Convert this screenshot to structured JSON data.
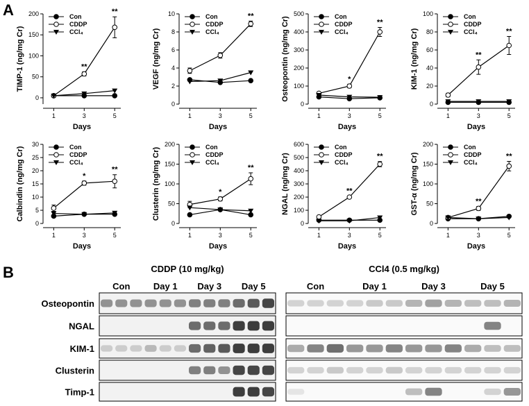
{
  "panels": {
    "a": "A",
    "b": "B"
  },
  "chart_data": [
    {
      "type": "line",
      "ylabel": "TIMP-1 (ng/mg Cr)",
      "xlabel": "Days",
      "x": [
        1,
        3,
        5
      ],
      "xlim": [
        0.3,
        5.4
      ],
      "xticks": [
        1,
        3,
        5
      ],
      "ylim": [
        -15,
        200
      ],
      "yticks": [
        0,
        50,
        100,
        150,
        200
      ],
      "legend": "upper left",
      "series": [
        {
          "name": "Con",
          "color": "#000",
          "marker": "filled-circle",
          "values": [
            5,
            5,
            5
          ]
        },
        {
          "name": "CDDP",
          "color": "#000",
          "marker": "open-circle",
          "values": [
            5,
            57,
            168
          ],
          "errors": [
            3,
            5,
            25
          ],
          "annotations": [
            null,
            "**",
            "**"
          ]
        },
        {
          "name": "CCl₄",
          "color": "#000",
          "marker": "filled-triangle",
          "values": [
            5,
            10,
            17
          ]
        }
      ]
    },
    {
      "type": "line",
      "ylabel": "VEGF (ng/mg Cr)",
      "xlabel": "Days",
      "x": [
        1,
        3,
        5
      ],
      "xlim": [
        0.3,
        5.4
      ],
      "xticks": [
        1,
        3,
        5
      ],
      "ylim": [
        0,
        10
      ],
      "yticks": [
        0,
        2,
        4,
        6,
        8,
        10
      ],
      "legend": "upper left",
      "series": [
        {
          "name": "Con",
          "color": "#000",
          "marker": "filled-circle",
          "values": [
            2.7,
            2.4,
            2.6
          ]
        },
        {
          "name": "CDDP",
          "color": "#000",
          "marker": "open-circle",
          "values": [
            3.7,
            5.4,
            8.9
          ],
          "errors": [
            0.3,
            0.3,
            0.3
          ],
          "annotations": [
            null,
            null,
            "**"
          ]
        },
        {
          "name": "CCl₄",
          "color": "#000",
          "marker": "filled-triangle",
          "values": [
            2.5,
            2.6,
            3.5
          ]
        }
      ]
    },
    {
      "type": "line",
      "ylabel": "Osteopontin (ng/mg Cr)",
      "xlabel": "Days",
      "x": [
        1,
        3,
        5
      ],
      "xlim": [
        0.3,
        5.4
      ],
      "xticks": [
        1,
        3,
        5
      ],
      "ylim": [
        0,
        500
      ],
      "yticks": [
        0,
        100,
        200,
        300,
        400,
        500
      ],
      "legend": "upper left",
      "series": [
        {
          "name": "Con",
          "color": "#000",
          "marker": "filled-circle",
          "values": [
            40,
            30,
            35
          ]
        },
        {
          "name": "CDDP",
          "color": "#000",
          "marker": "open-circle",
          "values": [
            60,
            100,
            400
          ],
          "errors": [
            5,
            10,
            25
          ],
          "annotations": [
            null,
            "*",
            "**"
          ]
        },
        {
          "name": "CCl₄",
          "color": "#000",
          "marker": "filled-triangle",
          "values": [
            50,
            40,
            38
          ]
        }
      ]
    },
    {
      "type": "line",
      "ylabel": "KIM-1 (ng/mg Cr)",
      "xlabel": "Days",
      "x": [
        1,
        3,
        5
      ],
      "xlim": [
        0.3,
        5.4
      ],
      "xticks": [
        1,
        3,
        5
      ],
      "ylim": [
        0,
        100
      ],
      "yticks": [
        0,
        20,
        40,
        60,
        80,
        100
      ],
      "legend": "upper left",
      "series": [
        {
          "name": "Con",
          "color": "#000",
          "marker": "filled-circle",
          "values": [
            2,
            2,
            2
          ]
        },
        {
          "name": "CDDP",
          "color": "#000",
          "marker": "open-circle",
          "values": [
            10,
            41,
            65
          ],
          "errors": [
            2,
            8,
            10
          ],
          "annotations": [
            null,
            "**",
            "**"
          ]
        },
        {
          "name": "CCl₄",
          "color": "#000",
          "marker": "filled-triangle",
          "values": [
            3,
            3,
            3
          ]
        }
      ]
    },
    {
      "type": "line",
      "ylabel": "Calbindin (ng/mg Cr)",
      "xlabel": "Days",
      "x": [
        1,
        3,
        5
      ],
      "xlim": [
        0.3,
        5.4
      ],
      "xticks": [
        1,
        3,
        5
      ],
      "ylim": [
        0,
        30
      ],
      "yticks": [
        0,
        5,
        10,
        15,
        20,
        25,
        30
      ],
      "legend": "upper left",
      "series": [
        {
          "name": "Con",
          "color": "#000",
          "marker": "filled-circle",
          "values": [
            2.8,
            3.5,
            3.5
          ]
        },
        {
          "name": "CDDP",
          "color": "#000",
          "marker": "open-circle",
          "values": [
            5.8,
            15.3,
            16
          ],
          "errors": [
            1.2,
            0.8,
            2.5
          ],
          "annotations": [
            null,
            "*",
            "**"
          ]
        },
        {
          "name": "CCl₄",
          "color": "#000",
          "marker": "filled-triangle",
          "values": [
            3.8,
            3.5,
            4
          ]
        }
      ]
    },
    {
      "type": "line",
      "ylabel": "Clusterin (ng/mg Cr)",
      "xlabel": "Days",
      "x": [
        1,
        3,
        5
      ],
      "xlim": [
        0.3,
        5.4
      ],
      "xticks": [
        1,
        3,
        5
      ],
      "ylim": [
        0,
        200
      ],
      "yticks": [
        0,
        50,
        100,
        150,
        200
      ],
      "legend": "upper left",
      "series": [
        {
          "name": "Con",
          "color": "#000",
          "marker": "filled-circle",
          "values": [
            22,
            35,
            22
          ]
        },
        {
          "name": "CDDP",
          "color": "#000",
          "marker": "open-circle",
          "values": [
            48,
            62,
            113
          ],
          "errors": [
            8,
            5,
            15
          ],
          "annotations": [
            null,
            "*",
            "**"
          ]
        },
        {
          "name": "CCl₄",
          "color": "#000",
          "marker": "filled-triangle",
          "values": [
            40,
            35,
            32
          ]
        }
      ]
    },
    {
      "type": "line",
      "ylabel": "NGAL (ng/mg Cr)",
      "xlabel": "Days",
      "x": [
        1,
        3,
        5
      ],
      "xlim": [
        0.3,
        5.4
      ],
      "xticks": [
        1,
        3,
        5
      ],
      "ylim": [
        0,
        600
      ],
      "yticks": [
        0,
        100,
        200,
        300,
        400,
        500,
        600
      ],
      "legend": "upper left",
      "series": [
        {
          "name": "Con",
          "color": "#000",
          "marker": "filled-circle",
          "values": [
            25,
            25,
            25
          ]
        },
        {
          "name": "CDDP",
          "color": "#000",
          "marker": "open-circle",
          "values": [
            50,
            200,
            450
          ],
          "errors": [
            5,
            8,
            20
          ],
          "annotations": [
            null,
            "**",
            "**"
          ]
        },
        {
          "name": "CCl₄",
          "color": "#000",
          "marker": "filled-triangle",
          "values": [
            20,
            20,
            45
          ]
        }
      ]
    },
    {
      "type": "line",
      "ylabel": "GST-α (ng/mg Cr)",
      "xlabel": "Days",
      "x": [
        1,
        3,
        5
      ],
      "xlim": [
        0.3,
        5.4
      ],
      "xticks": [
        1,
        3,
        5
      ],
      "ylim": [
        0,
        200
      ],
      "yticks": [
        0,
        50,
        100,
        150,
        200
      ],
      "legend": "upper left",
      "series": [
        {
          "name": "Con",
          "color": "#000",
          "marker": "filled-circle",
          "values": [
            12,
            12,
            18
          ]
        },
        {
          "name": "CDDP",
          "color": "#000",
          "marker": "open-circle",
          "values": [
            15,
            38,
            145
          ],
          "errors": [
            3,
            5,
            12
          ],
          "annotations": [
            null,
            "**",
            "**"
          ]
        },
        {
          "name": "CCl₄",
          "color": "#000",
          "marker": "filled-triangle",
          "values": [
            15,
            12,
            15
          ]
        }
      ]
    }
  ],
  "blot": {
    "groups": [
      {
        "title": "CDDP (10 mg/kg)",
        "lanes": [
          "Con",
          "Day 1",
          "Day 3",
          "Day 5"
        ]
      },
      {
        "title": "CCl4 (0.5 mg/kg)",
        "lanes": [
          "Con",
          "Day 1",
          "Day 3",
          "Day 5"
        ]
      }
    ],
    "rows": [
      "Osteopontin",
      "NGAL",
      "KIM-1",
      "Clusterin",
      "Timp-1"
    ]
  }
}
